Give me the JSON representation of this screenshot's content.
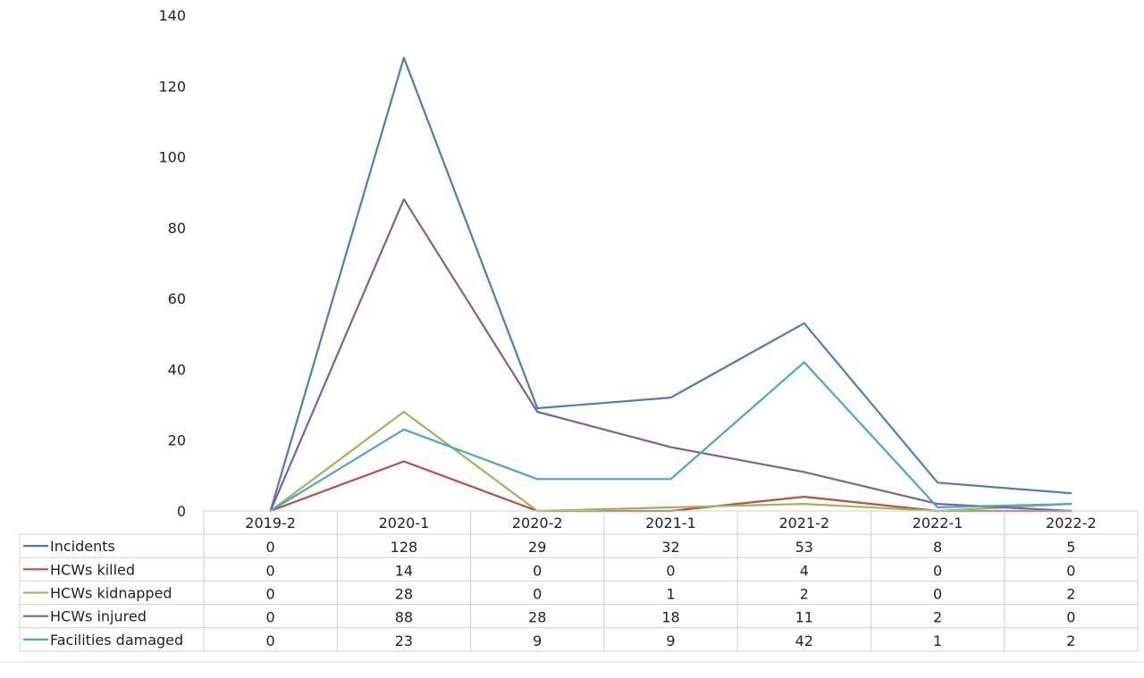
{
  "chart_data": {
    "type": "line",
    "title": "",
    "xlabel": "",
    "ylabel": "",
    "ylim": [
      0,
      140
    ],
    "yticks": [
      0,
      20,
      40,
      60,
      80,
      100,
      120,
      140
    ],
    "grid": false,
    "legend": "data-table-rows",
    "categories": [
      "2019-2",
      "2020-1",
      "2020-2",
      "2021-1",
      "2021-2",
      "2022-1",
      "2022-2"
    ],
    "series": [
      {
        "name": "Incidents",
        "color": "#4a7ebb",
        "values": [
          0,
          128,
          29,
          32,
          53,
          8,
          5
        ]
      },
      {
        "name": "HCWs killed",
        "color": "#be4b48",
        "values": [
          0,
          14,
          0,
          0,
          4,
          0,
          0
        ]
      },
      {
        "name": "HCWs kidnapped",
        "color": "#98b954",
        "values": [
          0,
          28,
          0,
          1,
          2,
          0,
          2
        ]
      },
      {
        "name": "HCWs injured",
        "color": "#7d60a0",
        "values": [
          0,
          88,
          28,
          18,
          11,
          2,
          0
        ]
      },
      {
        "name": "Facilities damaged",
        "color": "#46aac5",
        "values": [
          0,
          23,
          9,
          9,
          42,
          1,
          2
        ]
      }
    ]
  }
}
